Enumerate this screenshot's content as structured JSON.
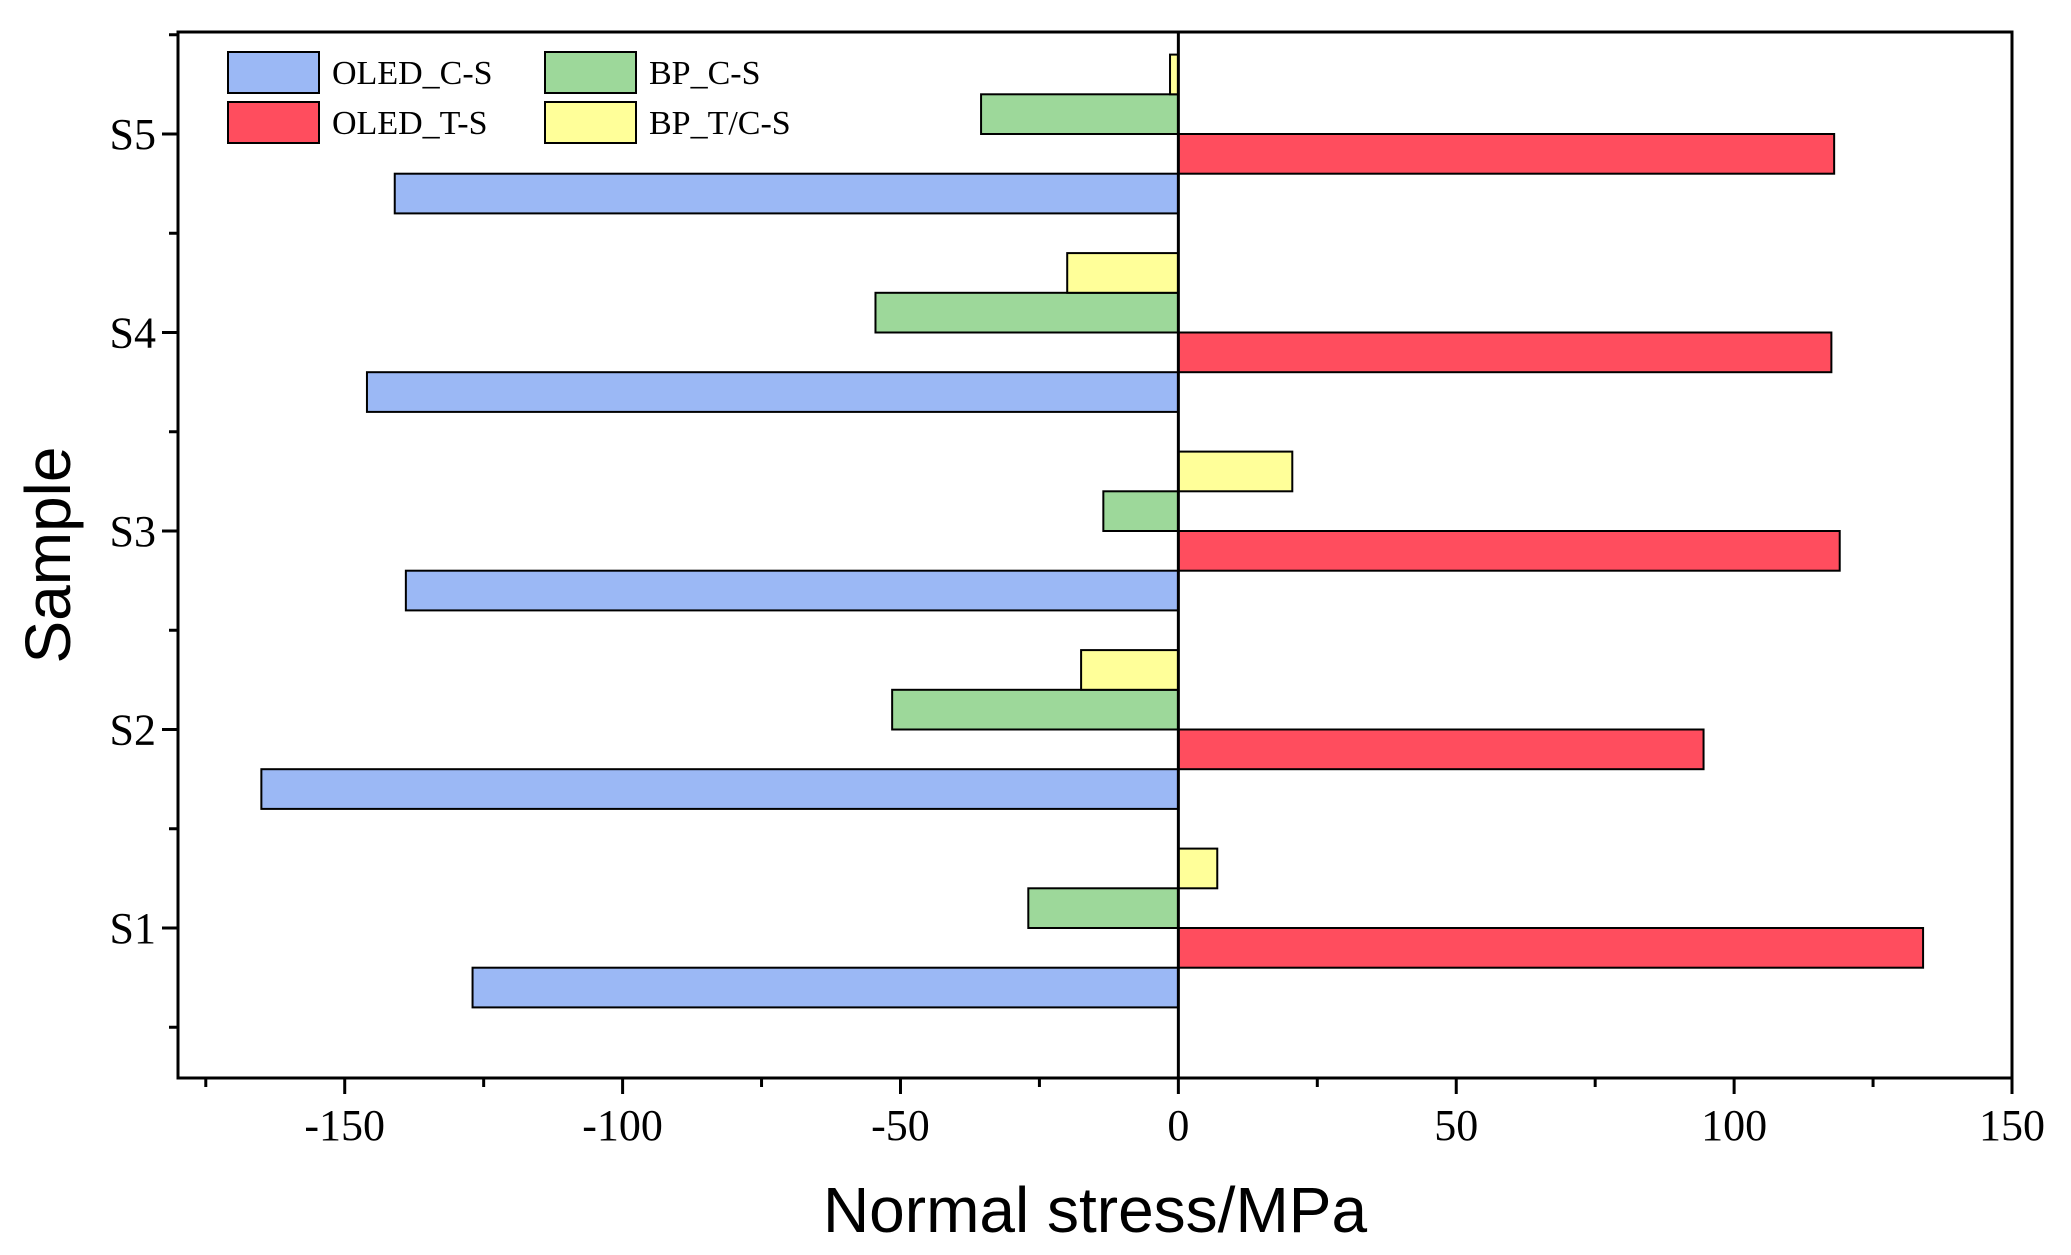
{
  "chart_data": {
    "type": "bar",
    "orientation": "horizontal",
    "categories": [
      "S1",
      "S2",
      "S3",
      "S4",
      "S5"
    ],
    "series": [
      {
        "name": "OLED_C-S",
        "color": "#9bb8f5",
        "values": [
          -127,
          -165,
          -139,
          -146,
          -141
        ]
      },
      {
        "name": "OLED_T-S",
        "color": "#ff4d5e",
        "values": [
          134,
          94.5,
          119,
          117.5,
          118
        ]
      },
      {
        "name": "BP_C-S",
        "color": "#9dd89a",
        "values": [
          -27,
          -51.5,
          -13.5,
          -54.5,
          -35.5
        ]
      },
      {
        "name": "BP_T/C-S",
        "color": "#ffff99",
        "values": [
          7,
          -17.5,
          20.5,
          -20,
          -1.5
        ]
      }
    ],
    "bar_order_bottom_to_top": [
      "OLED_C-S",
      "OLED_T-S",
      "BP_C-S",
      "BP_T/C-S"
    ],
    "xlabel": "Normal stress/MPa",
    "ylabel": "Sample",
    "xlim": [
      -180,
      150
    ],
    "x_major_ticks": [
      -150,
      -100,
      -50,
      0,
      50,
      100,
      150
    ],
    "x_tick_labels": [
      "-150",
      "-100",
      "-50",
      "0",
      "50",
      "100",
      "150"
    ],
    "x_minor_step": 25,
    "legend_placement": "top-left",
    "grid": false
  }
}
